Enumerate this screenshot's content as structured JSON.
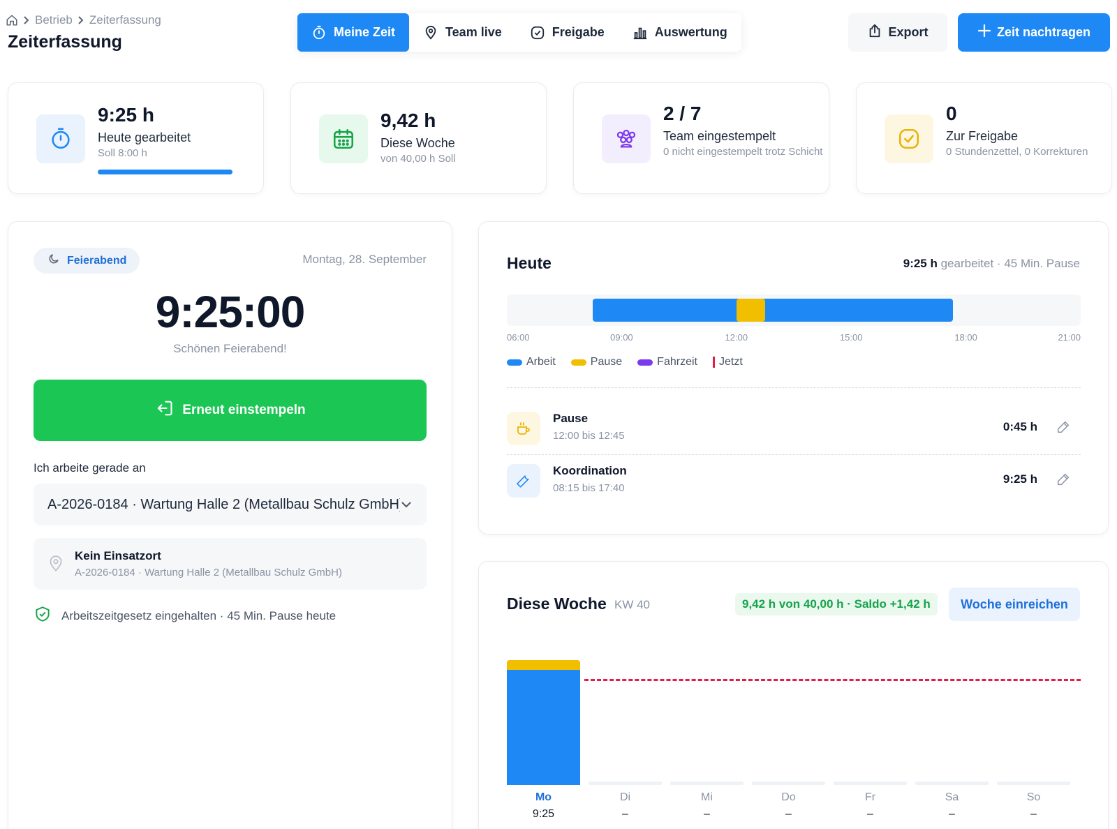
{
  "breadcrumb": {
    "items": [
      "Betrieb",
      "Zeiterfassung"
    ]
  },
  "page_title": "Zeiterfassung",
  "tabs": [
    {
      "label": "Meine Zeit",
      "icon": "stopwatch-icon",
      "active": true
    },
    {
      "label": "Team live",
      "icon": "map-pin-icon",
      "active": false
    },
    {
      "label": "Freigabe",
      "icon": "check-square-icon",
      "active": false
    },
    {
      "label": "Auswertung",
      "icon": "bar-chart-icon",
      "active": false
    }
  ],
  "actions": {
    "export_label": "Export",
    "add_label": "Zeit nachtragen"
  },
  "stats": [
    {
      "value": "9:25 h",
      "label": "Heute gearbeitet",
      "sub": "Soll 8:00 h",
      "progress": 1.0,
      "icon": "stopwatch-icon",
      "color": "#1e88f5"
    },
    {
      "value": "9,42 h",
      "label": "Diese Woche",
      "sub": "von 40,00 h Soll",
      "icon": "calendar-icon",
      "color": "#16a34a"
    },
    {
      "value": "2 / 7",
      "label": "Team eingestempelt",
      "sub": "0 nicht eingestempelt trotz Schicht",
      "icon": "team-icon",
      "color": "#7c3aed"
    },
    {
      "value": "0",
      "label": "Zur Freigabe",
      "sub": "0 Stundenzettel, 0 Korrekturen",
      "icon": "check-square-icon",
      "color": "#eab308"
    }
  ],
  "clock_panel": {
    "status": "Feierabend",
    "status_icon": "moon-icon",
    "date": "Montag, 28. September",
    "time": "9:25:00",
    "message": "Schönen Feierabend!",
    "clock_in_label": "Erneut einstempeln",
    "working_on_label": "Ich arbeite gerade an",
    "selected_project": "A-2026-0184 · Wartung Halle 2 (Metallbau Schulz GmbH)",
    "location_title": "Kein Einsatzort",
    "location_sub": "A-2026-0184 · Wartung Halle 2 (Metallbau Schulz GmbH)",
    "compliance": "Arbeitszeitgesetz eingehalten · 45 Min. Pause heute"
  },
  "today": {
    "title": "Heute",
    "summary_hours": "9:25 h",
    "summary_rest": " gearbeitet · 45 Min. Pause",
    "timeline": {
      "start_hour": 6,
      "end_hour": 21,
      "segments": [
        {
          "type": "Arbeit",
          "from": 8.25,
          "to": 17.6667
        },
        {
          "type": "Pause",
          "from": 12.0,
          "to": 12.75
        }
      ],
      "ticks": [
        "06:00",
        "09:00",
        "12:00",
        "15:00",
        "18:00",
        "21:00"
      ]
    },
    "legend": [
      {
        "label": "Arbeit",
        "color": "#1e88f5"
      },
      {
        "label": "Pause",
        "color": "#f2be00"
      },
      {
        "label": "Fahrzeit",
        "color": "#7c3aed"
      },
      {
        "label": "Jetzt",
        "color": "#e11d48"
      }
    ],
    "entries": [
      {
        "name": "Pause",
        "time": "12:00 bis 12:45",
        "duration": "0:45 h",
        "icon": "coffee-icon"
      },
      {
        "name": "Koordination",
        "time": "08:15 bis 17:40",
        "duration": "9:25 h",
        "icon": "wrench-icon"
      }
    ]
  },
  "week": {
    "title": "Diese Woche",
    "kw": "KW 40",
    "saldo": "9,42 h von 40,00 h · Saldo +1,42 h",
    "submit_label": "Woche einreichen",
    "chart_data": {
      "type": "bar",
      "categories": [
        "Mo",
        "Di",
        "Mi",
        "Do",
        "Fr",
        "Sa",
        "So"
      ],
      "series": [
        {
          "name": "Arbeit",
          "values": [
            8.67,
            0,
            0,
            0,
            0,
            0,
            0
          ]
        },
        {
          "name": "Pause",
          "values": [
            0.75,
            0,
            0,
            0,
            0,
            0,
            0
          ]
        }
      ],
      "value_labels": [
        "9:25",
        "–",
        "–",
        "–",
        "–",
        "–",
        "–"
      ],
      "target": 8.0,
      "ylim": [
        0,
        10
      ],
      "colors": {
        "Arbeit": "#1e88f5",
        "Pause": "#f2be00",
        "target": "#e11d48"
      }
    }
  }
}
